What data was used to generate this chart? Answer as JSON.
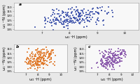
{
  "panel_a": {
    "label": "a",
    "color": "#3a4faa",
    "x_range": [
      6.0,
      10.5
    ],
    "y_range": [
      105,
      136
    ],
    "xlabel": "ω₂ ¹H (ppm)",
    "ylabel": "ω₁ ¹⁵N (ppm)",
    "x_ticks": [
      7,
      8,
      9,
      10
    ],
    "y_ticks": [
      110,
      115,
      120,
      125,
      130,
      135
    ],
    "seed": 42,
    "n_points": 160
  },
  "panel_b": {
    "label": "b",
    "color": "#e07828",
    "x_range": [
      6.0,
      10.5
    ],
    "y_range": [
      105,
      136
    ],
    "xlabel": "ω₂ ¹H (ppm)",
    "ylabel": "ω₁ ¹⁵N (ppm)",
    "x_ticks": [
      7,
      8,
      9,
      10
    ],
    "y_ticks": [
      110,
      115,
      120,
      125,
      130,
      135
    ],
    "seed": 7,
    "n_points": 150
  },
  "panel_c": {
    "label": "c",
    "color": "#8855aa",
    "x_range": [
      6.0,
      10.5
    ],
    "y_range": [
      105,
      136
    ],
    "xlabel": "ω₂ ¹H (ppm)",
    "ylabel": "ω₁ ¹⁵N (ppm)",
    "x_ticks": [
      7,
      8,
      9,
      10
    ],
    "y_ticks": [
      110,
      115,
      120,
      125,
      130,
      135
    ],
    "seed": 19,
    "n_points": 130
  },
  "background": "#e8e8e8",
  "panel_bg": "#f8f8f8",
  "label_fontsize": 3.8,
  "tick_fontsize": 3.0,
  "marker_size": 1.2
}
